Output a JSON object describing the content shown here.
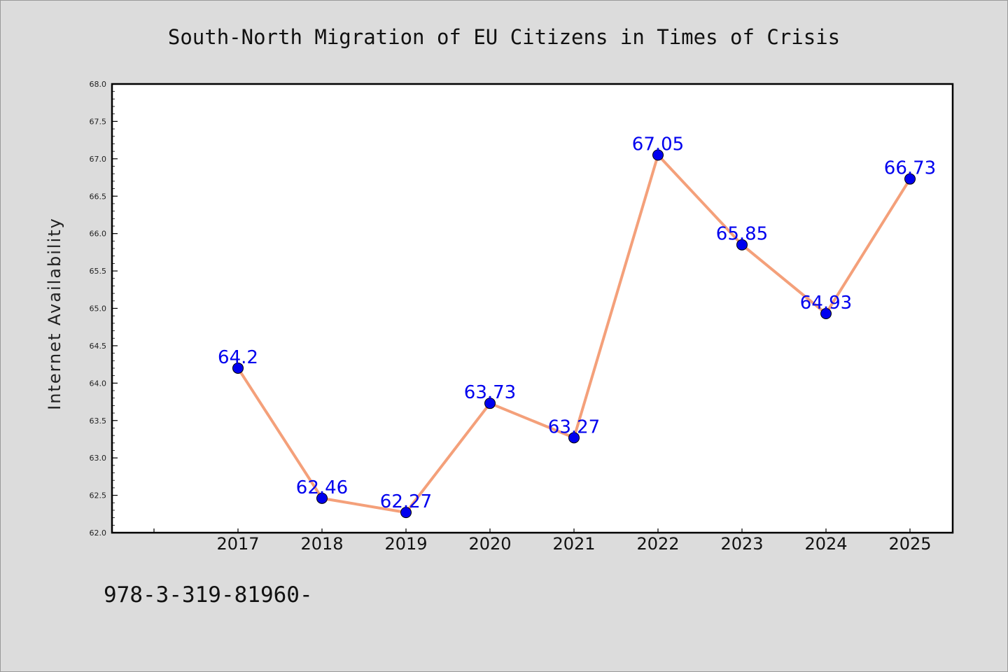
{
  "chart_data": {
    "type": "line",
    "title": "South-North Migration of EU Citizens in Times of Crisis",
    "xlabel": "",
    "ylabel": "Internet Availability",
    "categories": [
      "2017",
      "2018",
      "2019",
      "2020",
      "2021",
      "2022",
      "2023",
      "2024",
      "2025"
    ],
    "series": [
      {
        "values": [
          64.2,
          62.46,
          62.27,
          63.73,
          63.27,
          67.05,
          65.85,
          64.93,
          66.73
        ],
        "data_labels": [
          "64.2",
          "62.46",
          "62.27",
          "63.73",
          "63.27",
          "67.05",
          "65.85",
          "64.93",
          "66.73"
        ]
      }
    ],
    "ylim": [
      62.0,
      68.0
    ],
    "yticks": [
      "62.0",
      "62.5",
      "63.0",
      "63.5",
      "64.0",
      "64.5",
      "65.0",
      "65.5",
      "66.0",
      "66.5",
      "67.0",
      "67.5",
      "68.0"
    ],
    "grid": false,
    "legend": "none",
    "line_color": "#f4a07a",
    "marker_color": "#0000ee",
    "label_color": "#0000ee"
  },
  "footnote": "978-3-319-81960-"
}
